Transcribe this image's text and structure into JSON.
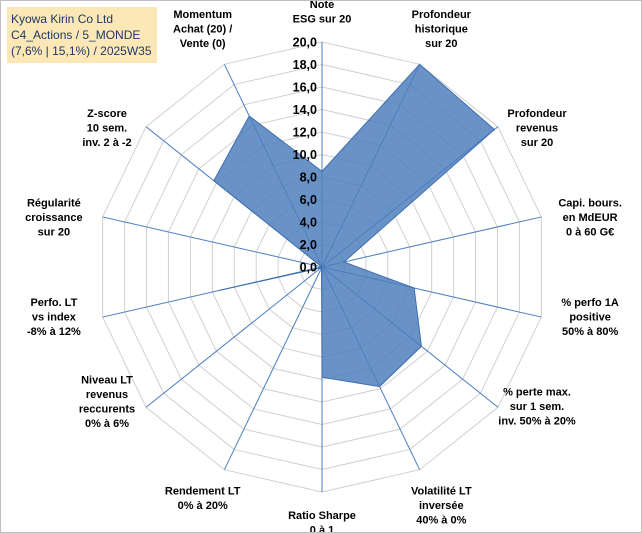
{
  "title_box": {
    "line1": "Kyowa Kirin Co Ltd",
    "line2": "C4_Actions / 5_MONDE",
    "line3": "(7,6% | 15,1%) / 2025W35"
  },
  "colors": {
    "fill": "#4f7fbd",
    "stroke": "#3f6fae",
    "spoke": "#4a7ec2",
    "grid": "#d0d0d0",
    "title_bg": "#fce8b6"
  },
  "chart_data": {
    "type": "radar",
    "rmin": 0,
    "rmax": 20,
    "tick_labels": [
      "0,0",
      "2,0",
      "4,0",
      "6,0",
      "8,0",
      "10,0",
      "12,0",
      "14,0",
      "16,0",
      "18,0",
      "20,0"
    ],
    "axes": [
      {
        "lines": [
          "Note",
          "ESG sur 20"
        ],
        "value": 8.5
      },
      {
        "lines": [
          "Profondeur",
          "historique",
          "sur 20"
        ],
        "value": 20.0
      },
      {
        "lines": [
          "Profondeur",
          "revenus",
          "sur 20"
        ],
        "value": 19.6
      },
      {
        "lines": [
          "Capi. bours.",
          "en MdEUR",
          "0 à 60 G€"
        ],
        "value": 2.0
      },
      {
        "lines": [
          "% perfo 1A",
          "positive",
          "50% à 80%"
        ],
        "value": 8.4
      },
      {
        "lines": [
          "% perte max.",
          "sur 1 sem.",
          "inv. 50% à 20%"
        ],
        "value": 11.3
      },
      {
        "lines": [
          "Volatilité LT",
          "inversée",
          "40% à 0%"
        ],
        "value": 11.8
      },
      {
        "lines": [
          "Ratio Sharpe",
          "0 à 1"
        ],
        "value": 9.8
      },
      {
        "lines": [
          "Rendement LT",
          "0% à 20%"
        ],
        "value": 0.1
      },
      {
        "lines": [
          "Niveau LT",
          "revenus",
          "reccurents",
          "0% à 6%"
        ],
        "value": 0.1
      },
      {
        "lines": [
          "Perfo. LT",
          "vs index",
          "-8% à 12%"
        ],
        "value": 9.4
      },
      {
        "lines": [
          "Régularité",
          "croissance",
          "sur 20"
        ],
        "value": 0.0
      },
      {
        "lines": [
          "Z-score",
          "10 sem.",
          "inv. 2 à -2"
        ],
        "value": 12.3
      },
      {
        "lines": [
          "Momentum",
          "Achat (20) /",
          "Vente (0)"
        ],
        "value": 14.9
      }
    ]
  }
}
